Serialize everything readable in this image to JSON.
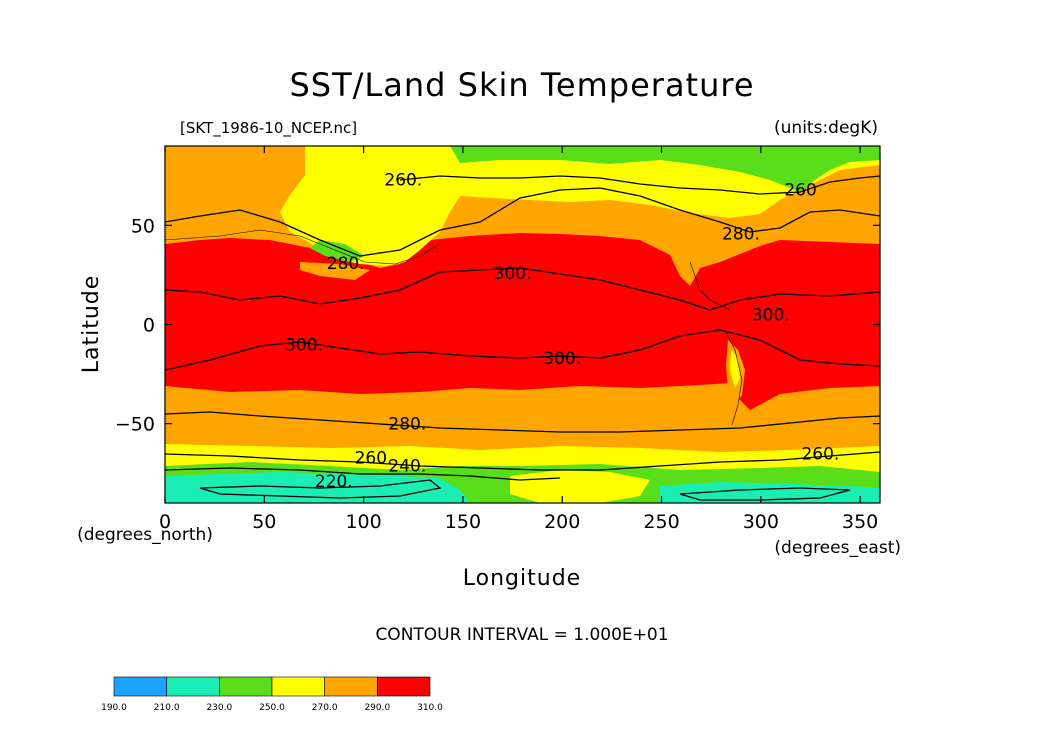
{
  "title": "SST/Land Skin Temperature",
  "file_label": "[SKT_1986-10_NCEP.nc]",
  "units_label": "(units:degK)",
  "y_axis": {
    "label": "Latitude",
    "unit_label": "(degrees_north)",
    "ticks": [
      "50",
      "0",
      "−50"
    ],
    "tick_values": [
      50,
      0,
      -50
    ],
    "range": [
      -90,
      90
    ]
  },
  "x_axis": {
    "label": "Longitude",
    "unit_label": "(degrees_east)",
    "ticks": [
      "0",
      "50",
      "100",
      "150",
      "200",
      "250",
      "300",
      "350"
    ],
    "tick_values": [
      0,
      50,
      100,
      150,
      200,
      250,
      300,
      350
    ],
    "range": [
      0,
      360
    ]
  },
  "contour_interval": "CONTOUR INTERVAL = 1.000E+01",
  "contour_labels": [
    {
      "text": "260.",
      "lon": 120,
      "lat": 73
    },
    {
      "text": "260",
      "lon": 320,
      "lat": 68
    },
    {
      "text": "280.",
      "lon": 290,
      "lat": 46
    },
    {
      "text": "280.",
      "lon": 91,
      "lat": 31
    },
    {
      "text": "300.",
      "lon": 175,
      "lat": 26
    },
    {
      "text": "300.",
      "lon": 305,
      "lat": 5
    },
    {
      "text": "300.",
      "lon": 70,
      "lat": -10
    },
    {
      "text": "300.",
      "lon": 200,
      "lat": -17
    },
    {
      "text": "280.",
      "lon": 122,
      "lat": -50
    },
    {
      "text": "260.",
      "lon": 105,
      "lat": -67
    },
    {
      "text": "240.",
      "lon": 122,
      "lat": -71
    },
    {
      "text": "220.",
      "lon": 85,
      "lat": -79
    },
    {
      "text": "260.",
      "lon": 330,
      "lat": -65
    }
  ],
  "colorbar": {
    "colors": [
      "#1aa3ff",
      "#1aeeb4",
      "#5ade1a",
      "#ffff00",
      "#ffa500",
      "#ff0000"
    ],
    "ticks": [
      "190.0",
      "210.0",
      "230.0",
      "250.0",
      "270.0",
      "290.0",
      "310.0"
    ]
  }
}
